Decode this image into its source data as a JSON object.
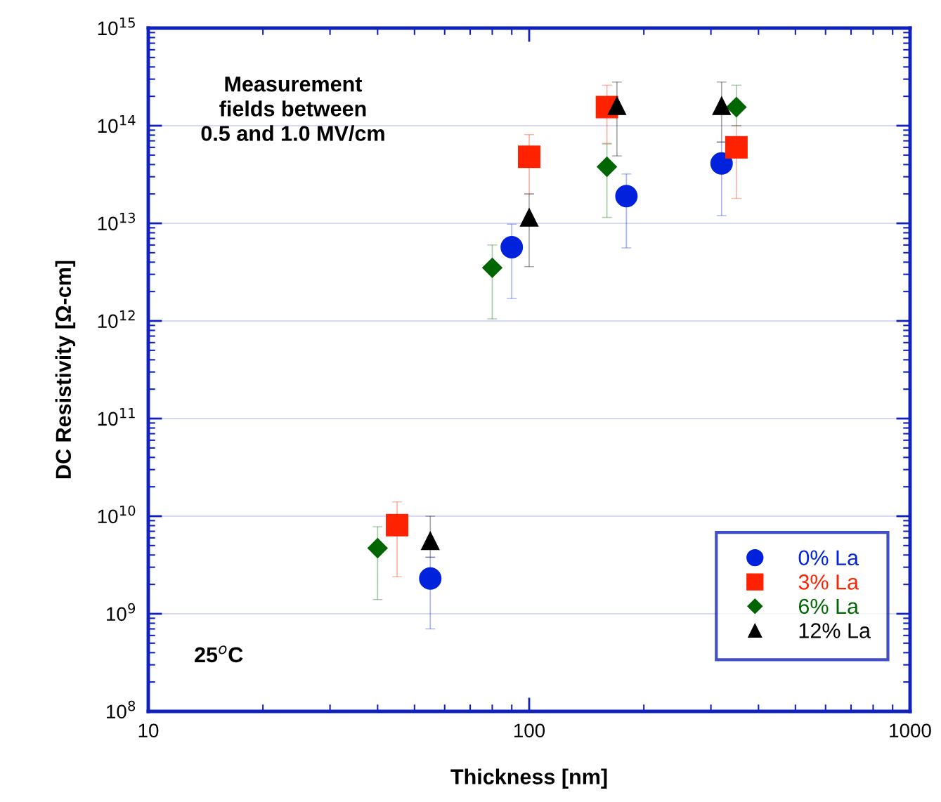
{
  "chart_data": {
    "type": "scatter",
    "xlabel": "Thickness [nm]",
    "ylabel": "DC Resistivity [Ω-cm]",
    "log": "xy",
    "grid": "y",
    "legend": "bottom right",
    "xlim": [
      10,
      1000
    ],
    "xticks": [
      10,
      100,
      1000
    ],
    "ylim": [
      100000000.0,
      1000000000000000.0
    ],
    "yticks": [
      {
        "value": 100000000.0,
        "label": "10$^{8}$"
      },
      {
        "value": 1000000000.0,
        "label": "10$^{9}$"
      },
      {
        "value": 10000000000.0,
        "label": "10$^{10}$"
      },
      {
        "value": 100000000000.0,
        "label": "10$^{11}$"
      },
      {
        "value": 1000000000000.0,
        "label": "10$^{12}$"
      },
      {
        "value": 10000000000000.0,
        "label": "10$^{13}$"
      },
      {
        "value": 100000000000000.0,
        "label": "10$^{14}$"
      },
      {
        "value": 1000000000000000.0,
        "label": "10$^{15}$"
      }
    ],
    "annotations": [
      "Measurement\nfields between\n0.5 and 1.0 MV/cm",
      "25$^{o}$C"
    ],
    "series": [
      {
        "name": "0% La",
        "color": "#0022dd",
        "marker": "circle",
        "x": [
          55,
          90,
          180,
          320
        ],
        "values": [
          2300000000.0,
          5700000000000.0,
          19000000000000.0,
          41000000000000.0
        ],
        "errors": [
          [
            700000000.0,
            3800000000.0
          ],
          [
            1700000000000.0,
            9800000000000.0
          ],
          [
            5600000000000.0,
            32000000000000.0
          ],
          [
            12000000000000.0,
            68000000000000.0
          ]
        ]
      },
      {
        "name": "3% La",
        "color": "#ff2200",
        "marker": "square",
        "x": [
          45,
          100,
          160,
          350
        ],
        "values": [
          8100000000.0,
          48000000000000.0,
          155000000000000.0,
          60000000000000.0
        ],
        "errors": [
          [
            2400000000.0,
            14000000000.0
          ],
          [
            20000000000000.0,
            81000000000000.0
          ],
          [
            66000000000000.0,
            260000000000000.0
          ],
          [
            18000000000000.0,
            100000000000000.0
          ]
        ]
      },
      {
        "name": "6% La",
        "color": "#006600",
        "marker": "diamond",
        "x": [
          40,
          80,
          160,
          350
        ],
        "values": [
          4700000000.0,
          3500000000000.0,
          38000000000000.0,
          155000000000000.0
        ],
        "errors": [
          [
            1400000000.0,
            7800000000.0
          ],
          [
            1050000000000.0,
            6000000000000.0
          ],
          [
            11500000000000.0,
            65000000000000.0
          ],
          [
            100000000000000.0,
            260000000000000.0
          ]
        ]
      },
      {
        "name": "12% La",
        "color": "#000000",
        "marker": "triangle",
        "x": [
          55,
          100,
          170,
          320
        ],
        "values": [
          5600000000.0,
          11500000000000.0,
          160000000000000.0,
          160000000000000.0
        ],
        "errors": [
          [
            3800000000.0,
            10000000000.0
          ],
          [
            3600000000000.0,
            20000000000000.0
          ],
          [
            49000000000000.0,
            280000000000000.0
          ],
          [
            68000000000000.0,
            280000000000000.0
          ]
        ]
      }
    ]
  }
}
